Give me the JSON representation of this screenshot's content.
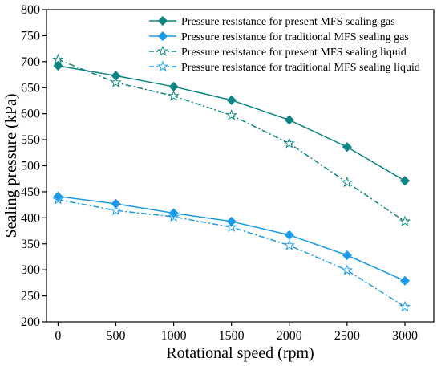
{
  "chart_data": {
    "type": "line",
    "title": "",
    "xlabel": "Rotational speed (rpm)",
    "ylabel": "Sealing pressure (kPa)",
    "xlim": [
      -100,
      3250
    ],
    "ylim": [
      200,
      800
    ],
    "x": [
      0,
      500,
      1000,
      1500,
      2000,
      2500,
      3000
    ],
    "xticks": [
      0,
      500,
      1000,
      1500,
      2000,
      2500,
      3000
    ],
    "yticks": [
      200,
      250,
      300,
      350,
      400,
      450,
      500,
      550,
      600,
      650,
      700,
      750,
      800
    ],
    "legend_position": "top-right",
    "grid": false,
    "series": [
      {
        "name": "Pressure resistance for present MFS sealing gas",
        "values": [
          692,
          673,
          652,
          626,
          588,
          536,
          471
        ],
        "color": "#0e8582",
        "line_style": "solid",
        "marker": "diamond-filled"
      },
      {
        "name": "Pressure resistance for traditional MFS sealing gas",
        "values": [
          441,
          427,
          409,
          393,
          367,
          328,
          279
        ],
        "color": "#1e9be8",
        "line_style": "solid",
        "marker": "diamond-filled"
      },
      {
        "name": "Pressure resistance for present MFS sealing liquid",
        "values": [
          704,
          660,
          634,
          597,
          543,
          468,
          393
        ],
        "color": "#0e8582",
        "line_style": "dash-dot",
        "marker": "star-open"
      },
      {
        "name": "Pressure resistance for traditional MFS sealing liquid",
        "values": [
          435,
          414,
          402,
          382,
          347,
          299,
          229
        ],
        "color": "#1e9be8",
        "line_style": "dash-dot",
        "marker": "star-open"
      }
    ]
  }
}
